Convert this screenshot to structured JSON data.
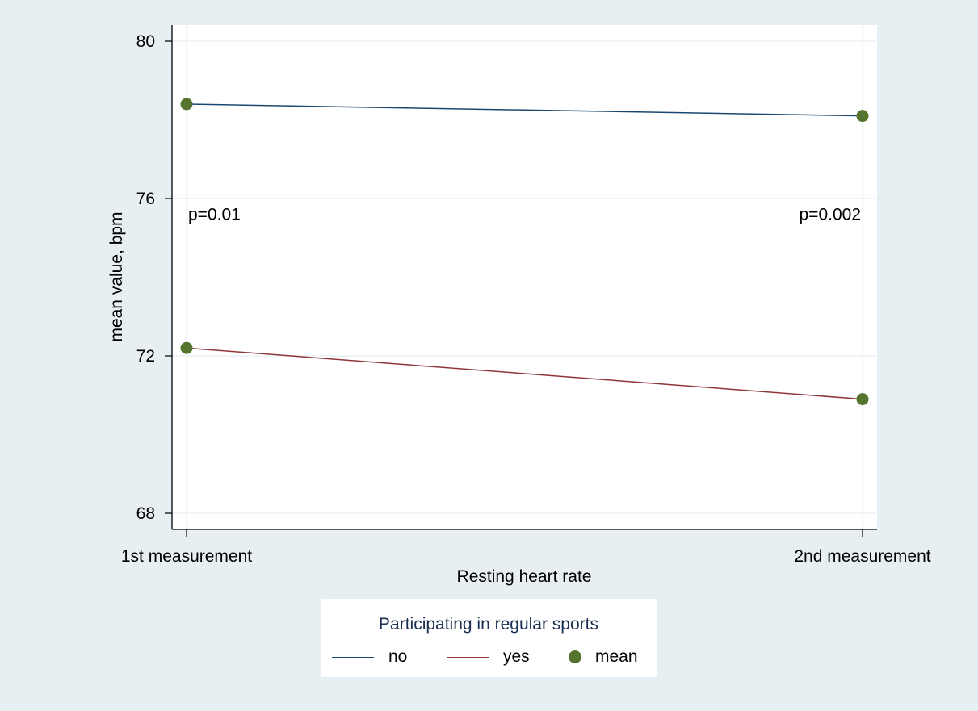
{
  "chart_data": {
    "type": "line",
    "categories": [
      "1st measurement",
      "2nd measurement"
    ],
    "series": [
      {
        "name": "no",
        "values": [
          78.4,
          78.1
        ],
        "color": "#1a476f"
      },
      {
        "name": "yes",
        "values": [
          72.2,
          70.9
        ],
        "color": "#90353b"
      }
    ],
    "markers": {
      "name": "mean",
      "color": "#55752f"
    },
    "xlabel": "Resting heart rate",
    "ylabel": "mean value, bpm",
    "ylim": [
      68,
      80
    ],
    "yticks": [
      68,
      72,
      76,
      80
    ],
    "annotations": [
      {
        "text": "p=0.01",
        "category": "1st measurement",
        "y": 75.6
      },
      {
        "text": "p=0.002",
        "category": "2nd measurement",
        "y": 75.6
      }
    ],
    "grid": true,
    "legend": {
      "title": "Participating in regular sports",
      "placement": "bottom",
      "items": [
        "no",
        "yes",
        "mean"
      ]
    }
  }
}
